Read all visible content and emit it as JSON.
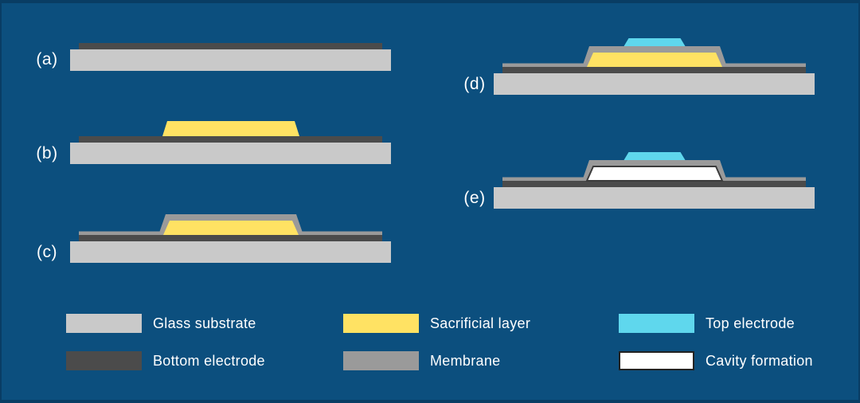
{
  "figure": {
    "background_color": "#0C4F7E",
    "frame_color": "#09426A",
    "text_color": "#FFFFFF"
  },
  "colors": {
    "glass_substrate": "#C9C9C9",
    "bottom_electrode": "#4B4B4B",
    "sacrificial_layer": "#FFE263",
    "membrane": "#9A9A9A",
    "top_electrode": "#5FD7ED",
    "cavity_formation": "#FFFFFF",
    "cavity_border": "#3C3C3C",
    "legend_cavity_swatch_border": "#222222"
  },
  "steps": [
    {
      "label": "(a)",
      "layers": [
        "glass_substrate",
        "bottom_electrode"
      ]
    },
    {
      "label": "(b)",
      "layers": [
        "glass_substrate",
        "bottom_electrode",
        "sacrificial_layer"
      ]
    },
    {
      "label": "(c)",
      "layers": [
        "glass_substrate",
        "bottom_electrode",
        "sacrificial_layer",
        "membrane"
      ]
    },
    {
      "label": "(d)",
      "layers": [
        "glass_substrate",
        "bottom_electrode",
        "sacrificial_layer",
        "membrane",
        "top_electrode"
      ]
    },
    {
      "label": "(e)",
      "layers": [
        "glass_substrate",
        "bottom_electrode",
        "membrane",
        "top_electrode",
        "cavity_formation"
      ]
    }
  ],
  "legend": {
    "items": [
      {
        "key": "glass_substrate",
        "label": "Glass substrate"
      },
      {
        "key": "bottom_electrode",
        "label": "Bottom electrode"
      },
      {
        "key": "sacrificial_layer",
        "label": "Sacrificial layer"
      },
      {
        "key": "membrane",
        "label": "Membrane"
      },
      {
        "key": "top_electrode",
        "label": "Top electrode"
      },
      {
        "key": "cavity_formation",
        "label": "Cavity formation"
      }
    ]
  }
}
